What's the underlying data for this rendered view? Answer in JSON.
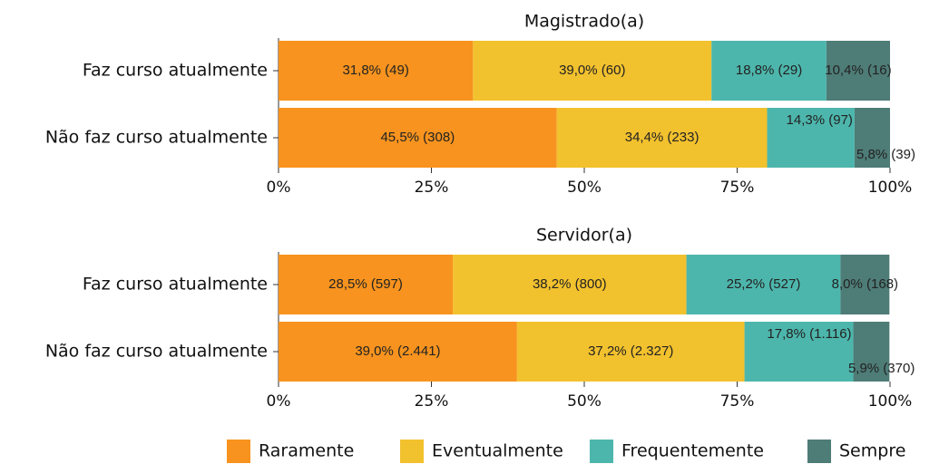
{
  "chart_data": [
    {
      "type": "stacked-bar-horizontal",
      "title": "Magistrado(a)",
      "categories": [
        "Faz curso atualmente",
        "Não faz curso atualmente"
      ],
      "xlim": [
        0,
        100
      ],
      "xticks": [
        {
          "value": 0,
          "label": "0%"
        },
        {
          "value": 25,
          "label": "25%"
        },
        {
          "value": 50,
          "label": "50%"
        },
        {
          "value": 75,
          "label": "75%"
        },
        {
          "value": 100,
          "label": "100%"
        }
      ],
      "series": [
        {
          "name": "Raramente",
          "color": "#f7931e",
          "values": [
            31.8,
            45.5
          ],
          "value_labels": [
            "31,8% (49)",
            "45,5% (308)"
          ]
        },
        {
          "name": "Eventualmente",
          "color": "#f2c12e",
          "values": [
            39.0,
            34.4
          ],
          "value_labels": [
            "39,0% (60)",
            "34,4% (233)"
          ]
        },
        {
          "name": "Frequentemente",
          "color": "#4db6ac",
          "values": [
            18.8,
            14.3
          ],
          "value_labels": [
            "18,8% (29)",
            "14,3% (97)"
          ]
        },
        {
          "name": "Sempre",
          "color": "#4e7c77",
          "values": [
            10.4,
            5.8
          ],
          "value_labels": [
            "10,4% (16)",
            "5,8% (39)"
          ]
        }
      ]
    },
    {
      "type": "stacked-bar-horizontal",
      "title": "Servidor(a)",
      "categories": [
        "Faz curso atualmente",
        "Não faz curso atualmente"
      ],
      "xlim": [
        0,
        100
      ],
      "xticks": [
        {
          "value": 0,
          "label": "0%"
        },
        {
          "value": 25,
          "label": "25%"
        },
        {
          "value": 50,
          "label": "50%"
        },
        {
          "value": 75,
          "label": "75%"
        },
        {
          "value": 100,
          "label": "100%"
        }
      ],
      "series": [
        {
          "color": "#f7931e",
          "values": [
            28.5,
            39.0
          ],
          "value_labels": [
            "28,5% (597)",
            "39,0% (2.441)"
          ]
        },
        {
          "color": "#f2c12e",
          "values": [
            38.2,
            37.2
          ],
          "value_labels": [
            "38,2% (800)",
            "37,2% (2.327)"
          ]
        },
        {
          "color": "#4db6ac",
          "values": [
            25.2,
            17.8
          ],
          "value_labels": [
            "25,2% (527)",
            "17,8% (1.116)"
          ]
        },
        {
          "color": "#4e7c77",
          "values": [
            8.0,
            5.9
          ],
          "value_labels": [
            "8,0% (168)",
            "5,9% (370)"
          ]
        }
      ]
    }
  ]
}
